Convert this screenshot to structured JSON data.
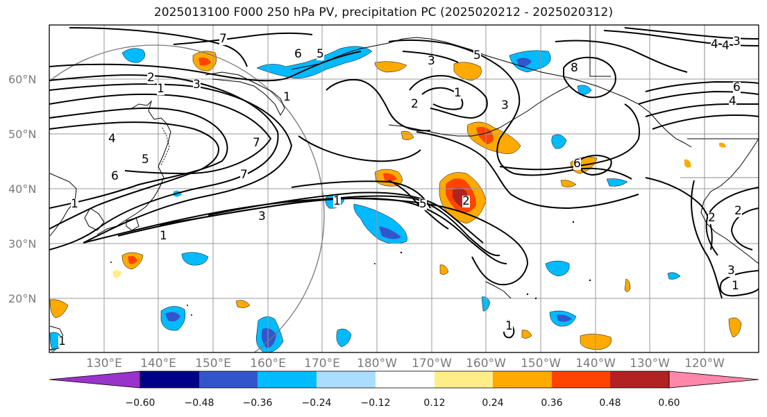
{
  "title": "2025013100 F000 250 hPa PV, precipitation PC (2025020212 - 2025020312)",
  "latitude_labels": [
    "60°N",
    "50°N",
    "40°N",
    "30°N",
    "20°N"
  ],
  "longitude_labels": [
    "130°E",
    "140°E",
    "150°E",
    "160°E",
    "170°E",
    "180°W",
    "170°W",
    "160°W",
    "150°W",
    "140°W",
    "130°W",
    "120°W"
  ],
  "colorbar": {
    "colors": [
      "#9933cc",
      "#000088",
      "#3355cc",
      "#00bbff",
      "#aaddff",
      "#ffffff",
      "#ffee88",
      "#ffaa00",
      "#ff4400",
      "#b22222",
      "#ff88aa"
    ],
    "tick_labels": [
      "−0.60",
      "−0.48",
      "−0.36",
      "−0.24",
      "−0.12",
      "0.12",
      "0.24",
      "0.36",
      "0.48",
      "0.60"
    ]
  },
  "contour_labels": [
    "7",
    "7",
    "7",
    "6",
    "6",
    "5",
    "5",
    "5",
    "5",
    "4",
    "4",
    "3",
    "3",
    "3",
    "3",
    "3",
    "2",
    "2",
    "2",
    "2",
    "2",
    "1",
    "1",
    "1",
    "1",
    "1",
    "1",
    "1",
    "1",
    "1",
    "6",
    "4",
    "4",
    "3",
    "6",
    "8"
  ]
}
